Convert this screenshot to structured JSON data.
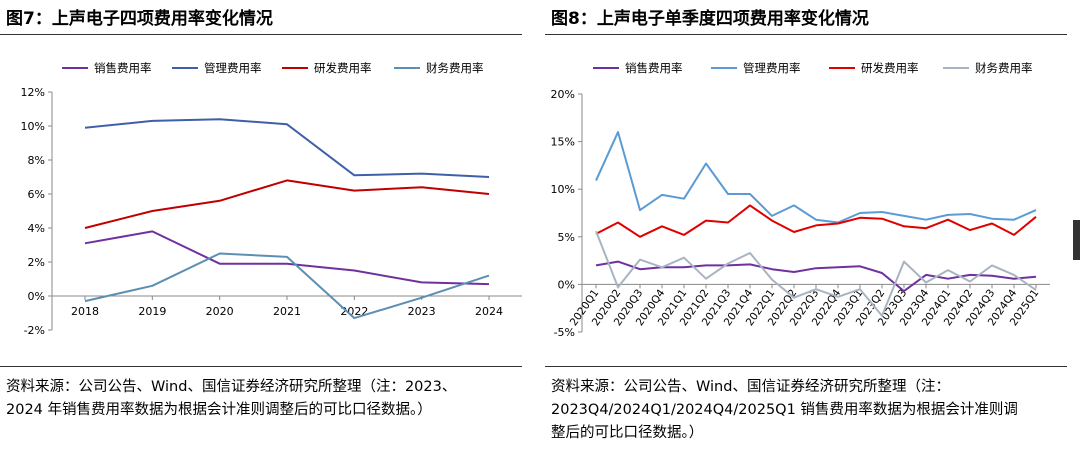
{
  "left": {
    "title": "图7：上声电子四项费用率变化情况",
    "source_lines": [
      "资料来源：公司公告、Wind、国信证券经济研究所整理（注：2023、",
      "2024 年销售费用率数据为根据会计准则调整后的可比口径数据。）"
    ],
    "chart_data": {
      "type": "line",
      "x": [
        "2018",
        "2019",
        "2020",
        "2021",
        "2022",
        "2023",
        "2024"
      ],
      "ylim": [
        -2,
        12
      ],
      "yticks": [
        -2,
        0,
        2,
        4,
        6,
        8,
        10,
        12
      ],
      "ytick_labels": [
        "-2%",
        "0%",
        "2%",
        "4%",
        "6%",
        "8%",
        "10%",
        "12%"
      ],
      "legend_position": "top",
      "series": [
        {
          "name": "销售费用率",
          "color": "#7030a0",
          "values": [
            3.1,
            3.8,
            1.9,
            1.9,
            1.5,
            0.8,
            0.7
          ]
        },
        {
          "name": "管理费用率",
          "color": "#3f5fa8",
          "values": [
            9.9,
            10.3,
            10.4,
            10.1,
            7.1,
            7.2,
            7.0
          ]
        },
        {
          "name": "研发费用率",
          "color": "#c00000",
          "values": [
            4.0,
            5.0,
            5.6,
            6.8,
            6.2,
            6.4,
            6.0
          ]
        },
        {
          "name": "财务费用率",
          "color": "#5b8fb3",
          "values": [
            -0.3,
            0.6,
            2.5,
            2.3,
            -1.3,
            -0.1,
            1.2
          ]
        }
      ]
    }
  },
  "right": {
    "title": "图8：上声电子单季度四项费用率变化情况",
    "source_lines": [
      "资料来源：公司公告、Wind、国信证券经济研究所整理（注：",
      "2023Q4/2024Q1/2024Q4/2025Q1 销售费用率数据为根据会计准则调",
      "整后的可比口径数据。）"
    ],
    "chart_data": {
      "type": "line",
      "x": [
        "2020Q1",
        "2020Q2",
        "2020Q3",
        "2020Q4",
        "2021Q1",
        "2021Q2",
        "2021Q3",
        "2021Q4",
        "2022Q1",
        "2022Q2",
        "2022Q3",
        "2022Q4",
        "2023Q1",
        "2023Q2",
        "2023Q3",
        "2023Q4",
        "2024Q1",
        "2024Q2",
        "2024Q3",
        "2024Q4",
        "2025Q1"
      ],
      "ylim": [
        -5,
        20
      ],
      "yticks": [
        -5,
        0,
        5,
        10,
        15,
        20
      ],
      "ytick_labels": [
        "-5%",
        "0%",
        "5%",
        "10%",
        "15%",
        "20%"
      ],
      "legend_position": "top",
      "series": [
        {
          "name": "销售费用率",
          "color": "#7030a0",
          "values": [
            2.0,
            2.4,
            1.6,
            1.8,
            1.8,
            2.0,
            2.0,
            2.1,
            1.6,
            1.3,
            1.7,
            1.8,
            1.9,
            1.2,
            -0.7,
            1.0,
            0.6,
            1.0,
            0.9,
            0.6,
            0.8
          ]
        },
        {
          "name": "管理费用率",
          "color": "#5b9bd5",
          "values": [
            10.9,
            16.0,
            7.8,
            9.4,
            9.0,
            12.7,
            9.5,
            9.5,
            7.2,
            8.3,
            6.8,
            6.5,
            7.5,
            7.6,
            7.2,
            6.8,
            7.3,
            7.4,
            6.9,
            6.8,
            7.8
          ]
        },
        {
          "name": "研发费用率",
          "color": "#e00000",
          "values": [
            5.3,
            6.5,
            5.0,
            6.1,
            5.2,
            6.7,
            6.5,
            8.3,
            6.7,
            5.5,
            6.2,
            6.4,
            7.0,
            6.9,
            6.1,
            5.9,
            6.8,
            5.7,
            6.4,
            5.2,
            7.1
          ]
        },
        {
          "name": "财务费用率",
          "color": "#a9b4c2",
          "values": [
            5.6,
            -0.3,
            2.6,
            1.8,
            2.8,
            0.6,
            2.2,
            3.3,
            0.5,
            -1.4,
            -0.5,
            -1.3,
            -0.5,
            -3.3,
            2.4,
            0.2,
            1.5,
            0.3,
            2.0,
            1.0,
            -0.6
          ]
        }
      ]
    }
  }
}
